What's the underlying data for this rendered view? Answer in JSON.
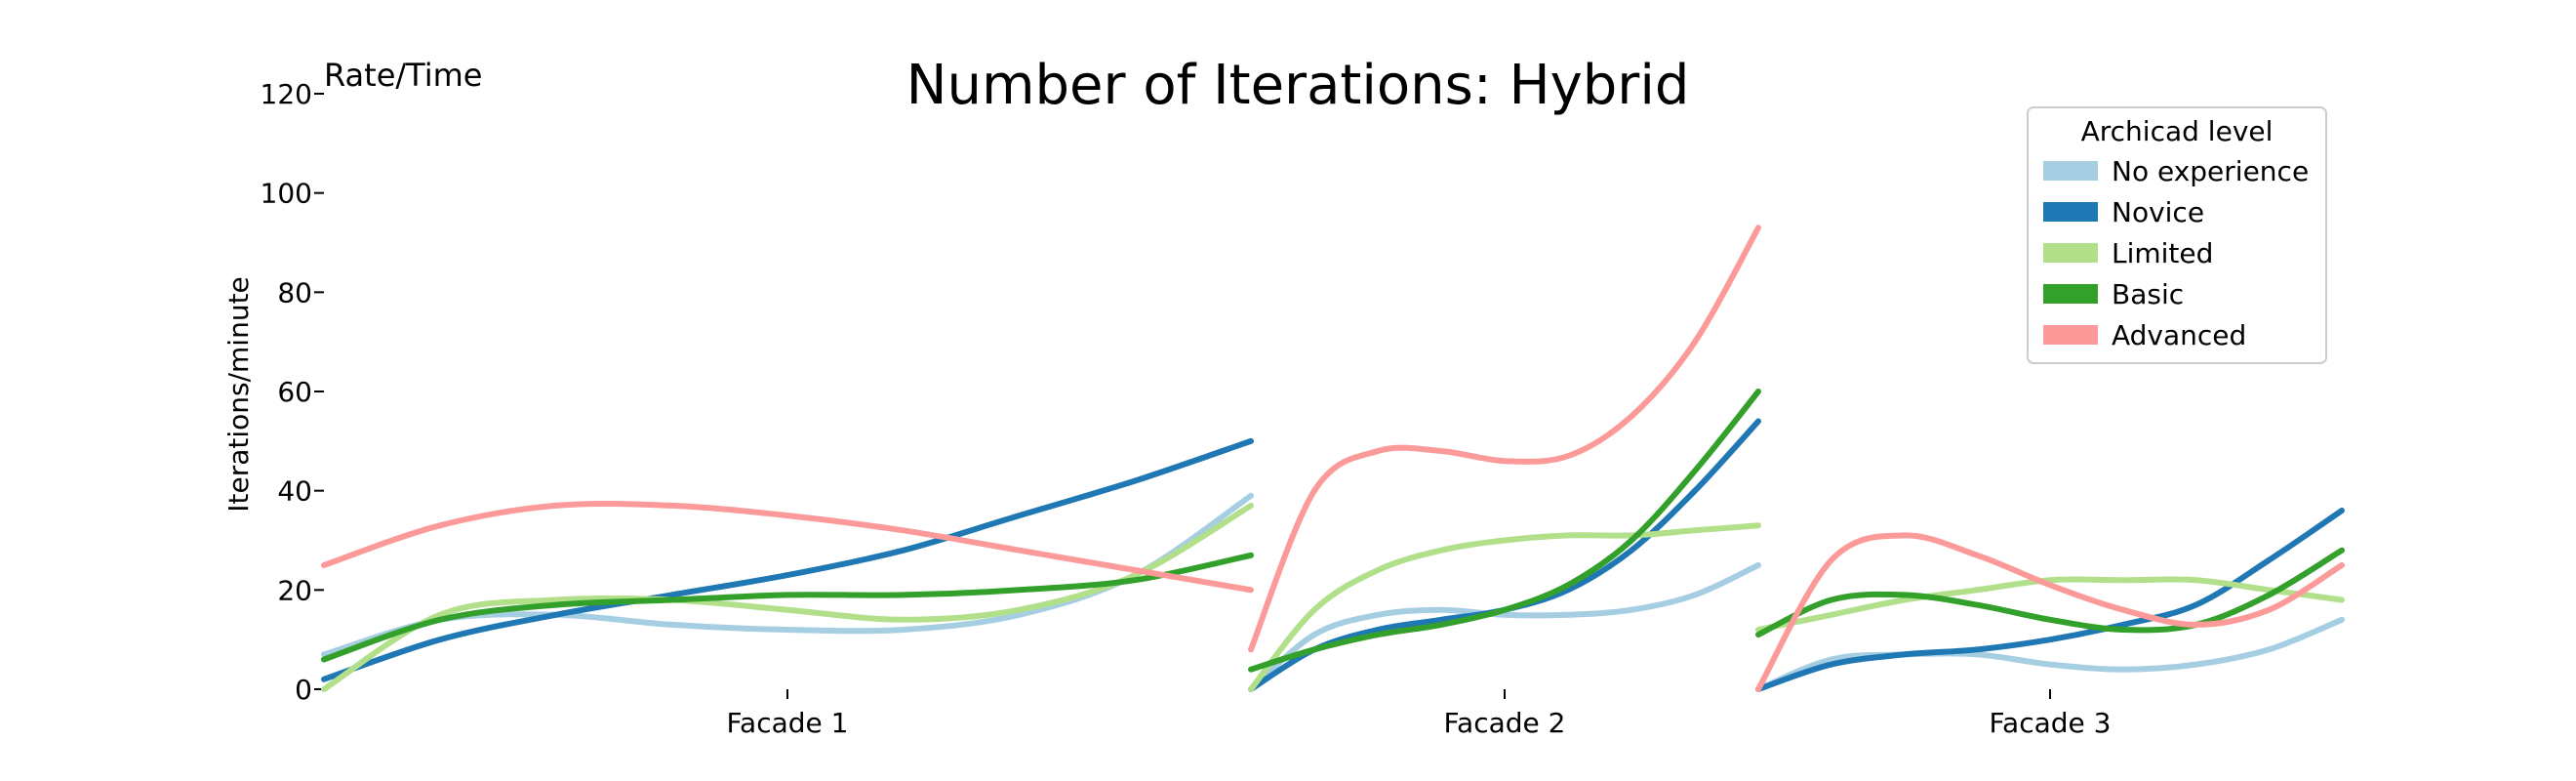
{
  "chart_data": {
    "type": "line",
    "title": "Number of Iterations: Hybrid",
    "corner_label": "Rate/Time",
    "xlabel": "",
    "ylabel": "Iterations/minute",
    "ylim": [
      0,
      120
    ],
    "yticks": [
      0,
      20,
      40,
      60,
      80,
      100,
      120
    ],
    "grid": false,
    "legend": {
      "title": "Archicad level",
      "placement": "top-right"
    },
    "colors": {
      "No experience": "#a6cee3",
      "Novice": "#1f78b4",
      "Limited": "#b2df8a",
      "Basic": "#33a02c",
      "Advanced": "#fb9a99"
    },
    "panels": [
      {
        "name": "Facade 1",
        "x": [
          0,
          0.125,
          0.25,
          0.375,
          0.5,
          0.625,
          0.75,
          0.875,
          1
        ],
        "series": [
          {
            "name": "No experience",
            "values": [
              7,
              14,
              15,
              13,
              12,
              12,
              15,
              23,
              39
            ]
          },
          {
            "name": "Novice",
            "values": [
              2,
              10,
              15,
              19,
              23,
              28,
              35,
              42,
              50
            ]
          },
          {
            "name": "Limited",
            "values": [
              0,
              15,
              18,
              18,
              16,
              14,
              16,
              23,
              37
            ]
          },
          {
            "name": "Basic",
            "values": [
              6,
              14,
              17,
              18,
              19,
              19,
              20,
              22,
              27
            ]
          },
          {
            "name": "Advanced",
            "values": [
              25,
              33,
              37,
              37,
              35,
              32,
              28,
              24,
              20
            ]
          }
        ]
      },
      {
        "name": "Facade 2",
        "x": [
          0,
          0.125,
          0.25,
          0.375,
          0.5,
          0.625,
          0.75,
          0.875,
          1
        ],
        "series": [
          {
            "name": "No experience",
            "values": [
              0,
              11,
              15,
              16,
              15,
              15,
              16,
              19,
              25
            ]
          },
          {
            "name": "Novice",
            "values": [
              0,
              8,
              12,
              14,
              16,
              20,
              28,
              40,
              54
            ]
          },
          {
            "name": "Limited",
            "values": [
              0,
              16,
              24,
              28,
              30,
              31,
              31,
              32,
              33
            ]
          },
          {
            "name": "Basic",
            "values": [
              4,
              8,
              11,
              13,
              16,
              21,
              30,
              44,
              60
            ]
          },
          {
            "name": "Advanced",
            "values": [
              8,
              40,
              48,
              48,
              46,
              47,
              55,
              70,
              93
            ]
          }
        ]
      },
      {
        "name": "Facade 3",
        "x": [
          0,
          0.125,
          0.25,
          0.375,
          0.5,
          0.625,
          0.75,
          0.875,
          1
        ],
        "series": [
          {
            "name": "No experience",
            "values": [
              0,
              6,
              7,
              7,
              5,
              4,
              5,
              8,
              14
            ]
          },
          {
            "name": "Novice",
            "values": [
              0,
              5,
              7,
              8,
              10,
              13,
              17,
              26,
              36
            ]
          },
          {
            "name": "Limited",
            "values": [
              12,
              15,
              18,
              20,
              22,
              22,
              22,
              20,
              18
            ]
          },
          {
            "name": "Basic",
            "values": [
              11,
              18,
              19,
              17,
              14,
              12,
              13,
              19,
              28
            ]
          },
          {
            "name": "Advanced",
            "values": [
              0,
              26,
              31,
              27,
              21,
              16,
              13,
              16,
              25
            ]
          }
        ]
      }
    ]
  }
}
